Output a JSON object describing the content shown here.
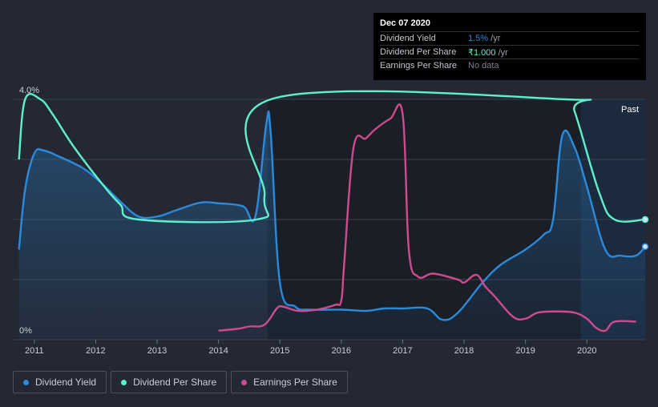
{
  "tooltip": {
    "date": "Dec 07 2020",
    "rows": [
      {
        "label": "Dividend Yield",
        "value": "1.5%",
        "unit": " /yr"
      },
      {
        "label": "Dividend Per Share",
        "value": "₹1.000",
        "unit": " /yr"
      },
      {
        "label": "Earnings Per Share",
        "value": "No data",
        "unit": ""
      }
    ]
  },
  "legend": [
    {
      "label": "Dividend Yield"
    },
    {
      "label": "Dividend Per Share"
    },
    {
      "label": "Earnings Per Share"
    }
  ],
  "colors": {
    "background": "#232834",
    "highlight_band": "#1a1e27",
    "future_band": "#1e2f47",
    "dividend_yield": "#2b8ad9",
    "dividend_per_share": "#5ef0cc",
    "earnings_per_share": "#d04a8e",
    "grid": "#3a404c",
    "text": "#c8cdd6"
  },
  "chart_data": {
    "type": "line",
    "y_labels": [
      "0%",
      "4.0%"
    ],
    "x_ticks": [
      "2011",
      "2012",
      "2013",
      "2014",
      "2015",
      "2016",
      "2017",
      "2018",
      "2019",
      "2020"
    ],
    "past_label": "Past",
    "x_range": [
      2010.65,
      2020.95
    ],
    "y_range_pct": [
      0,
      4.0
    ],
    "shaded_region": [
      2014.8,
      2020.95
    ],
    "future_region": [
      2019.9,
      2020.95
    ],
    "series": [
      {
        "name": "Dividend Yield",
        "unit": "%",
        "filled": true,
        "points": [
          [
            2010.75,
            1.5
          ],
          [
            2010.85,
            2.5
          ],
          [
            2011.0,
            3.1
          ],
          [
            2011.15,
            3.15
          ],
          [
            2011.4,
            3.05
          ],
          [
            2011.8,
            2.85
          ],
          [
            2012.1,
            2.6
          ],
          [
            2012.4,
            2.3
          ],
          [
            2012.7,
            2.05
          ],
          [
            2013.0,
            2.05
          ],
          [
            2013.3,
            2.15
          ],
          [
            2013.7,
            2.28
          ],
          [
            2014.0,
            2.27
          ],
          [
            2014.4,
            2.22
          ],
          [
            2014.6,
            2.05
          ],
          [
            2014.78,
            3.6
          ],
          [
            2014.85,
            3.45
          ],
          [
            2015.0,
            0.95
          ],
          [
            2015.25,
            0.55
          ],
          [
            2015.5,
            0.5
          ],
          [
            2016.0,
            0.5
          ],
          [
            2016.4,
            0.48
          ],
          [
            2016.7,
            0.52
          ],
          [
            2017.0,
            0.52
          ],
          [
            2017.4,
            0.52
          ],
          [
            2017.65,
            0.33
          ],
          [
            2017.9,
            0.45
          ],
          [
            2018.3,
            0.95
          ],
          [
            2018.6,
            1.25
          ],
          [
            2019.0,
            1.5
          ],
          [
            2019.3,
            1.75
          ],
          [
            2019.45,
            2.0
          ],
          [
            2019.6,
            3.4
          ],
          [
            2019.8,
            3.2
          ],
          [
            2020.0,
            2.55
          ],
          [
            2020.3,
            1.5
          ],
          [
            2020.55,
            1.4
          ],
          [
            2020.8,
            1.4
          ],
          [
            2020.95,
            1.55
          ]
        ]
      },
      {
        "name": "Dividend Per Share",
        "unit": "₹",
        "filled": false,
        "points": [
          [
            2010.75,
            3.0
          ],
          [
            2010.85,
            4.0
          ],
          [
            2011.1,
            4.0
          ],
          [
            2011.3,
            3.75
          ],
          [
            2011.65,
            3.2
          ],
          [
            2012.1,
            2.6
          ],
          [
            2012.4,
            2.25
          ],
          [
            2012.7,
            2.0
          ],
          [
            2014.62,
            2.0
          ],
          [
            2014.75,
            2.4
          ],
          [
            2014.85,
            4.0
          ],
          [
            2019.65,
            4.0
          ],
          [
            2019.8,
            3.8
          ],
          [
            2020.2,
            2.45
          ],
          [
            2020.45,
            2.0
          ],
          [
            2020.95,
            2.0
          ]
        ]
      },
      {
        "name": "Earnings Per Share",
        "unit": "₹",
        "filled": false,
        "points": [
          [
            2014.0,
            0.15
          ],
          [
            2014.3,
            0.18
          ],
          [
            2014.5,
            0.22
          ],
          [
            2014.75,
            0.25
          ],
          [
            2014.95,
            0.52
          ],
          [
            2015.05,
            0.55
          ],
          [
            2015.3,
            0.48
          ],
          [
            2015.6,
            0.5
          ],
          [
            2015.9,
            0.58
          ],
          [
            2016.0,
            0.65
          ],
          [
            2016.05,
            1.3
          ],
          [
            2016.2,
            3.2
          ],
          [
            2016.4,
            3.35
          ],
          [
            2016.55,
            3.5
          ],
          [
            2016.8,
            3.68
          ],
          [
            2017.0,
            3.75
          ],
          [
            2017.1,
            1.5
          ],
          [
            2017.25,
            1.05
          ],
          [
            2017.5,
            1.1
          ],
          [
            2017.9,
            1.0
          ],
          [
            2018.0,
            0.95
          ],
          [
            2018.2,
            1.08
          ],
          [
            2018.35,
            0.88
          ],
          [
            2018.5,
            0.72
          ],
          [
            2018.8,
            0.38
          ],
          [
            2019.0,
            0.35
          ],
          [
            2019.2,
            0.45
          ],
          [
            2019.5,
            0.47
          ],
          [
            2019.8,
            0.45
          ],
          [
            2020.0,
            0.35
          ],
          [
            2020.15,
            0.2
          ],
          [
            2020.3,
            0.15
          ],
          [
            2020.45,
            0.3
          ],
          [
            2020.8,
            0.3
          ]
        ]
      }
    ]
  }
}
